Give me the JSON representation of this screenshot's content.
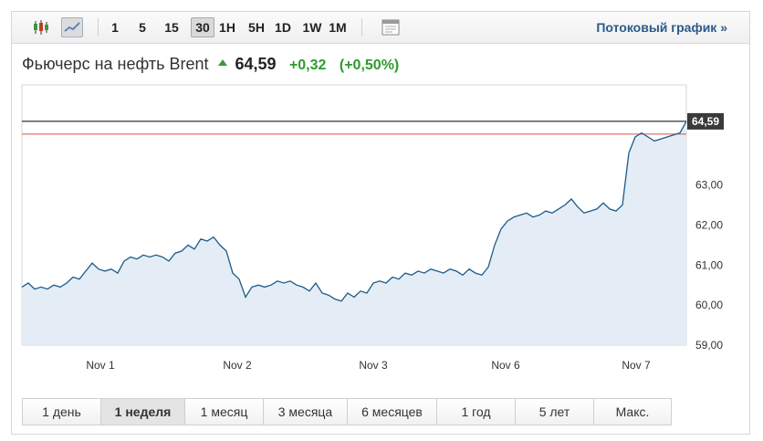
{
  "toolbar": {
    "intervals": [
      "1",
      "5",
      "15",
      "30",
      "1H",
      "5H",
      "1D",
      "1W",
      "1M"
    ],
    "active_interval": "30",
    "chart_type_active": "line",
    "stream_link": "Потоковый график »"
  },
  "quote": {
    "name": "Фьючерс на нефть Brent",
    "price": "64,59",
    "change": "+0,32",
    "change_pct": "(+0,50%)",
    "direction": "up"
  },
  "colors": {
    "line": "#1c5b8a",
    "area": "#e4edf5",
    "up": "#2f9a2f",
    "prev_close_line": "#d9534f",
    "current_line": "#000000",
    "label_bg": "#3a3a3a"
  },
  "chart_data": {
    "type": "area",
    "y_ticks": [
      "63,00",
      "62,00",
      "61,00",
      "60,00",
      "59,00"
    ],
    "ylim": [
      59.0,
      65.5
    ],
    "x_labels": [
      "Nov 1",
      "Nov 2",
      "Nov 3",
      "Nov 6",
      "Nov 7"
    ],
    "current_value": 64.59,
    "current_label": "64,59",
    "reference_value": 64.27,
    "grid": false,
    "series": [
      {
        "values": [
          60.45,
          60.55,
          60.4,
          60.45,
          60.4,
          60.5,
          60.45,
          60.55,
          60.7,
          60.65,
          60.85,
          61.05,
          60.9,
          60.85,
          60.9,
          60.8,
          61.1,
          61.2,
          61.15,
          61.25,
          61.2,
          61.25,
          61.2,
          61.1,
          61.3,
          61.35,
          61.5,
          61.4,
          61.65,
          61.6,
          61.7,
          61.5,
          61.35,
          60.8,
          60.65,
          60.2,
          60.45,
          60.5,
          60.45,
          60.5,
          60.6,
          60.55,
          60.6,
          60.5,
          60.45,
          60.35,
          60.55,
          60.3,
          60.25,
          60.15,
          60.1,
          60.3,
          60.2,
          60.35,
          60.3,
          60.55,
          60.6,
          60.55,
          60.7,
          60.65,
          60.8,
          60.75,
          60.85,
          60.8,
          60.9,
          60.85,
          60.8,
          60.9,
          60.85,
          60.75,
          60.9,
          60.8,
          60.75,
          60.95,
          61.5,
          61.9,
          62.1,
          62.2,
          62.25,
          62.3,
          62.2,
          62.25,
          62.35,
          62.3,
          62.4,
          62.5,
          62.65,
          62.45,
          62.3,
          62.35,
          62.4,
          62.55,
          62.4,
          62.35,
          62.5,
          63.8,
          64.2,
          64.3,
          64.2,
          64.1,
          64.15,
          64.2,
          64.25,
          64.3,
          64.59
        ]
      }
    ]
  },
  "ranges": [
    "1 день",
    "1 неделя",
    "1 месяц",
    "3 месяца",
    "6 месяцев",
    "1 год",
    "5 лет",
    "Макс."
  ],
  "active_range": "1 неделя"
}
